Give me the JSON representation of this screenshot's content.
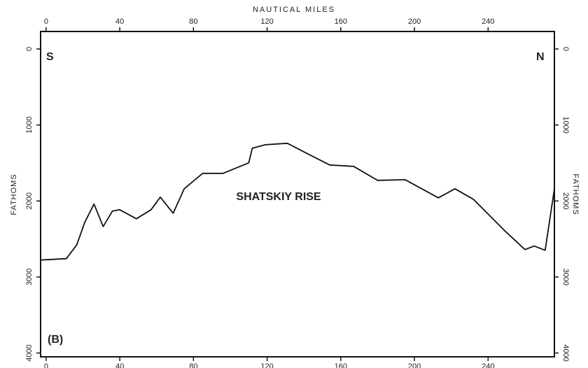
{
  "chart_data": {
    "type": "line",
    "xlabel": "NAUTICAL MILES",
    "ylabel": "FATHOMS",
    "y2label": "FATHOMS",
    "annotations": [
      "S",
      "N",
      "(B)",
      "SHATSKIY RISE"
    ],
    "x": [
      -3,
      11,
      16.7,
      21,
      26,
      31,
      36,
      40,
      49,
      57,
      62,
      69,
      75,
      85,
      96,
      110,
      112,
      119,
      131,
      142,
      154,
      167,
      180,
      195,
      213,
      222,
      232,
      249,
      260,
      265,
      271,
      276
    ],
    "series": [
      {
        "color": "#111111",
        "values": [
          2777,
          2759,
          2575,
          2280,
          2041,
          2336,
          2133,
          2115,
          2234,
          2115,
          1950,
          2161,
          1839,
          1637,
          1637,
          1499,
          1306,
          1260,
          1241,
          1379,
          1526,
          1545,
          1729,
          1720,
          1959,
          1839,
          1977,
          2391,
          2639,
          2593,
          2648,
          1839
        ]
      }
    ],
    "xlim": [
      -3,
      276
    ],
    "xticks": [
      0,
      40,
      80,
      120,
      160,
      200,
      240
    ],
    "ylim": [
      4050,
      -230
    ],
    "yticks": [
      0,
      1000,
      2000,
      3000,
      4000
    ],
    "y2lim": [
      4050,
      -230
    ],
    "y2ticks": [
      0,
      1000,
      2000,
      3000,
      4000
    ]
  }
}
